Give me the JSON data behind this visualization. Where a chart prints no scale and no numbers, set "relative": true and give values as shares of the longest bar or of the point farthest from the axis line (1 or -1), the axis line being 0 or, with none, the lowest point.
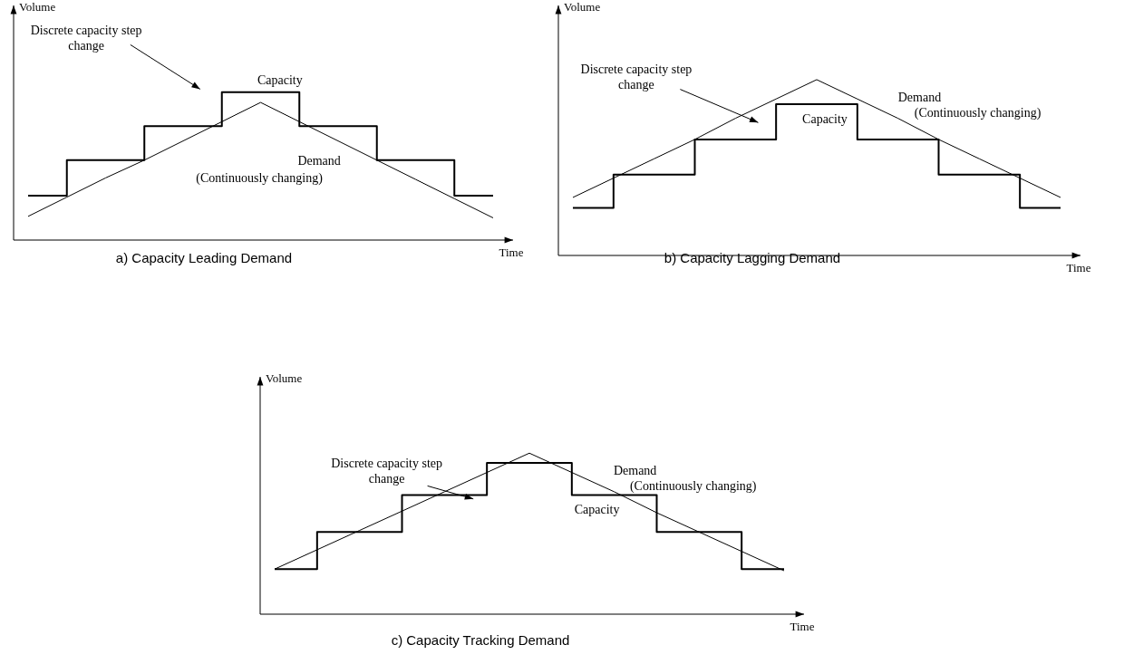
{
  "chart_data": [
    {
      "type": "line",
      "title": "a) Capacity Leading Demand",
      "xlabel": "Time",
      "ylabel": "Volume",
      "relative": true,
      "categories": [
        null,
        null,
        null,
        null,
        null,
        null,
        null,
        null,
        null,
        null,
        null,
        null,
        null
      ],
      "legend": false,
      "grid": false,
      "marker": "none",
      "series": [
        {
          "name": "Capacity",
          "type": "step",
          "color": "#000000",
          "values": [
            0.3,
            0.54,
            0.54,
            0.77,
            0.77,
            1,
            1,
            0.77,
            0.77,
            0.54,
            0.54,
            0.3,
            0.3
          ]
        },
        {
          "name": "Demand",
          "type": "line",
          "color": "#000000",
          "values": [
            0.16,
            0.29,
            0.42,
            0.54,
            0.67,
            0.8,
            0.93,
            0.8,
            0.67,
            0.54,
            0.41,
            0.28,
            0.15
          ]
        }
      ],
      "annotations": [
        "Discrete capacity step change",
        "(Continuously changing)"
      ]
    },
    {
      "type": "line",
      "title": "b) Capacity Lagging Demand",
      "xlabel": "Time",
      "ylabel": "Volume",
      "relative": true,
      "categories": [
        null,
        null,
        null,
        null,
        null,
        null,
        null,
        null,
        null,
        null,
        null,
        null,
        null
      ],
      "legend": false,
      "grid": false,
      "marker": "none",
      "series": [
        {
          "name": "Capacity",
          "type": "step",
          "color": "#000000",
          "values": [
            0.27,
            0.46,
            0.46,
            0.66,
            0.66,
            0.86,
            0.86,
            0.66,
            0.66,
            0.46,
            0.46,
            0.27,
            0.27
          ]
        },
        {
          "name": "Demand",
          "type": "line",
          "color": "#000000",
          "values": [
            0.33,
            0.44,
            0.55,
            0.66,
            0.78,
            0.89,
            1,
            0.89,
            0.78,
            0.66,
            0.55,
            0.44,
            0.33
          ]
        }
      ],
      "annotations": [
        "Discrete capacity step change",
        "(Continuously changing)"
      ]
    },
    {
      "type": "line",
      "title": "c) Capacity Tracking Demand",
      "xlabel": "Time",
      "ylabel": "Volume",
      "relative": true,
      "categories": [
        null,
        null,
        null,
        null,
        null,
        null,
        null,
        null,
        null,
        null,
        null,
        null,
        null
      ],
      "legend": false,
      "grid": false,
      "marker": "none",
      "series": [
        {
          "name": "Capacity",
          "type": "step",
          "color": "#000000",
          "values": [
            0.28,
            0.51,
            0.51,
            0.74,
            0.74,
            0.94,
            0.94,
            0.74,
            0.74,
            0.51,
            0.51,
            0.28,
            0.28
          ]
        },
        {
          "name": "Demand",
          "type": "line",
          "color": "#000000",
          "values": [
            0.28,
            0.4,
            0.52,
            0.64,
            0.76,
            0.88,
            1,
            0.88,
            0.76,
            0.63,
            0.51,
            0.39,
            0.27
          ]
        }
      ],
      "annotations": [
        "Discrete capacity step change",
        "(Continuously changing)"
      ]
    }
  ]
}
